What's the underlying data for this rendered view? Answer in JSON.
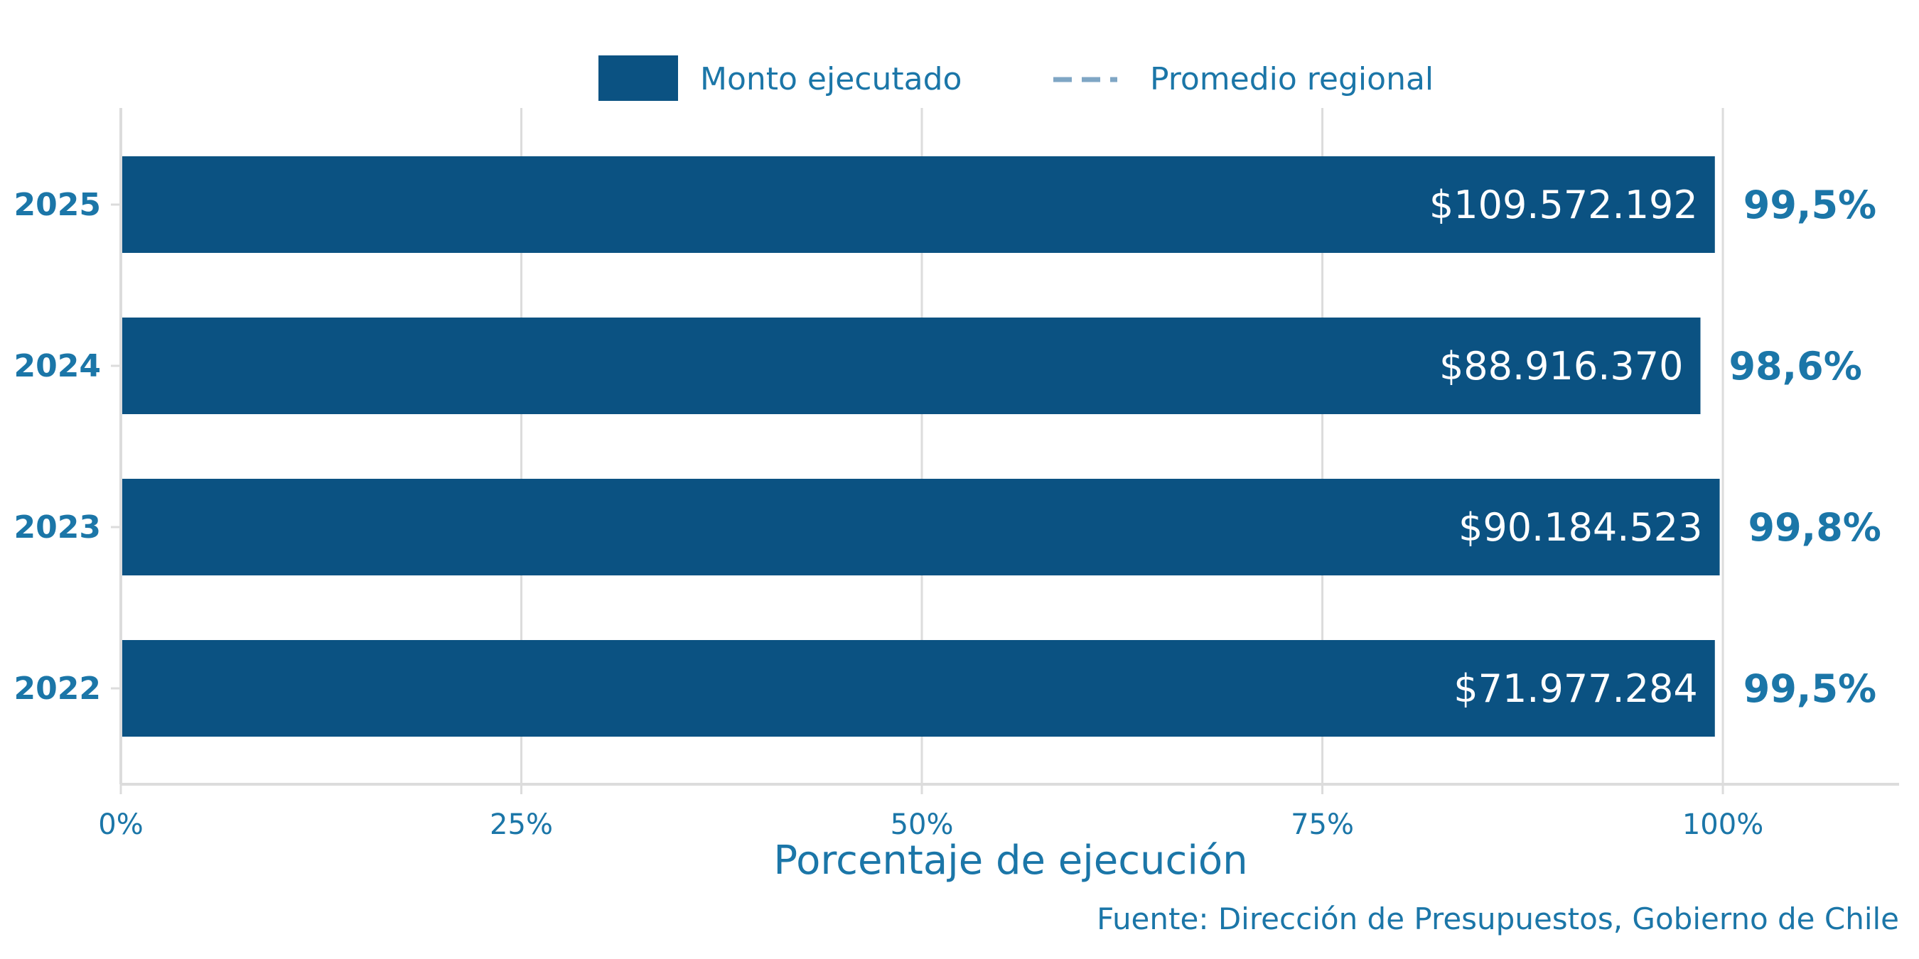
{
  "chart_data": {
    "type": "bar",
    "orientation": "horizontal",
    "categories": [
      "2025",
      "2024",
      "2023",
      "2022"
    ],
    "series": [
      {
        "name": "Monto ejecutado",
        "values": [
          99.5,
          98.6,
          99.8,
          99.5
        ],
        "amount_labels": [
          "$109.572.192",
          "$88.916.370",
          "$90.184.523",
          "$71.977.284"
        ],
        "percent_labels": [
          "99,5%",
          "98,6%",
          "99,8%",
          "99,5%"
        ]
      }
    ],
    "reference_line": {
      "name": "Promedio regional",
      "style": "dashed"
    },
    "xlabel": "Porcentaje de ejecución",
    "xlim": [
      0,
      111
    ],
    "xticks": [
      0,
      25,
      50,
      75,
      100
    ],
    "xtick_labels": [
      "0%",
      "25%",
      "50%",
      "75%",
      "100%"
    ],
    "caption": "Fuente: Dirección de Presupuestos, Gobierno de Chile",
    "grid": true,
    "legend_position": "top",
    "colors": {
      "bar": "#0b5282",
      "text": "#1b76a8",
      "reference": "#7fa6c4",
      "grid": "#dcdcdc"
    }
  }
}
